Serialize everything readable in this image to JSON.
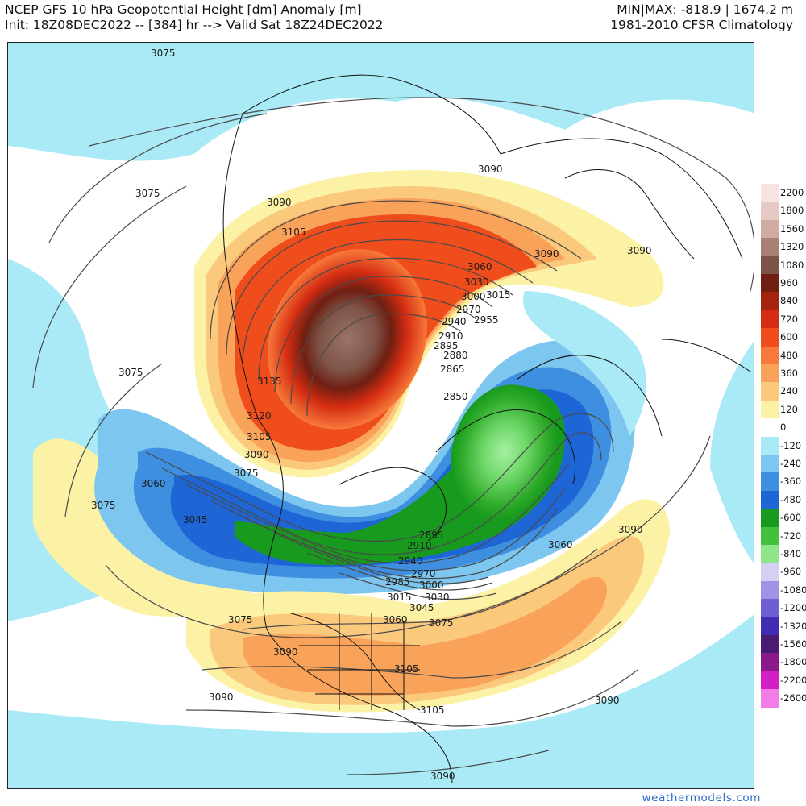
{
  "header": {
    "title": "NCEP GFS 10 hPa Geopotential Height [dm] Anomaly [m]",
    "init_line": "Init: 18Z08DEC2022 -- [384] hr --> Valid Sat 18Z24DEC2022",
    "minmax": "MIN|MAX: -818.9 | 1674.2 m",
    "climatology": "1981-2010 CFSR Climatology"
  },
  "colorbar": [
    {
      "label": "2200",
      "color": "#f6e4e0"
    },
    {
      "label": "1800",
      "color": "#e6c9c2"
    },
    {
      "label": "1560",
      "color": "#cfaba1"
    },
    {
      "label": "1320",
      "color": "#a98074"
    },
    {
      "label": "1080",
      "color": "#7f5448"
    },
    {
      "label": "960",
      "color": "#6e1f12"
    },
    {
      "label": "840",
      "color": "#a3230f"
    },
    {
      "label": "720",
      "color": "#d42c12"
    },
    {
      "label": "600",
      "color": "#ef4d1c"
    },
    {
      "label": "480",
      "color": "#f77a3a"
    },
    {
      "label": "360",
      "color": "#f9a25a"
    },
    {
      "label": "240",
      "color": "#fbc97c"
    },
    {
      "label": "120",
      "color": "#fcf2a6"
    },
    {
      "label": "0",
      "color": "#ffffff"
    },
    {
      "label": "-120",
      "color": "#a9eaf6"
    },
    {
      "label": "-240",
      "color": "#7cc6ef"
    },
    {
      "label": "-360",
      "color": "#3f8fe0"
    },
    {
      "label": "-480",
      "color": "#1e66d6"
    },
    {
      "label": "-600",
      "color": "#179a1e"
    },
    {
      "label": "-720",
      "color": "#43c13c"
    },
    {
      "label": "-840",
      "color": "#8fe68a"
    },
    {
      "label": "-960",
      "color": "#d4d0f2"
    },
    {
      "label": "-1080",
      "color": "#9e93e4"
    },
    {
      "label": "-1200",
      "color": "#6e5fd2"
    },
    {
      "label": "-1320",
      "color": "#3f2cb2"
    },
    {
      "label": "-1560",
      "color": "#4b1a73"
    },
    {
      "label": "-1800",
      "color": "#8a1a8a"
    },
    {
      "label": "-2200",
      "color": "#d41fc6"
    },
    {
      "label": "-2600",
      "color": "#f27de6"
    }
  ],
  "contour_labels": [
    "3075",
    "3075",
    "3075",
    "3075",
    "3090",
    "3105",
    "3090",
    "3090",
    "3090",
    "3060",
    "3030",
    "3015",
    "3000",
    "2970",
    "2955",
    "2940",
    "2910",
    "2895",
    "2880",
    "2865",
    "2850",
    "3135",
    "3120",
    "3105",
    "3090",
    "3075",
    "3060",
    "3045",
    "2895",
    "2910",
    "2940",
    "2970",
    "2985",
    "3000",
    "3015",
    "3030",
    "3045",
    "3060",
    "3075",
    "3075",
    "3060",
    "3090",
    "3090",
    "3105",
    "3090",
    "3105",
    "3090",
    "3090"
  ],
  "credit": "weathermodels.com"
}
